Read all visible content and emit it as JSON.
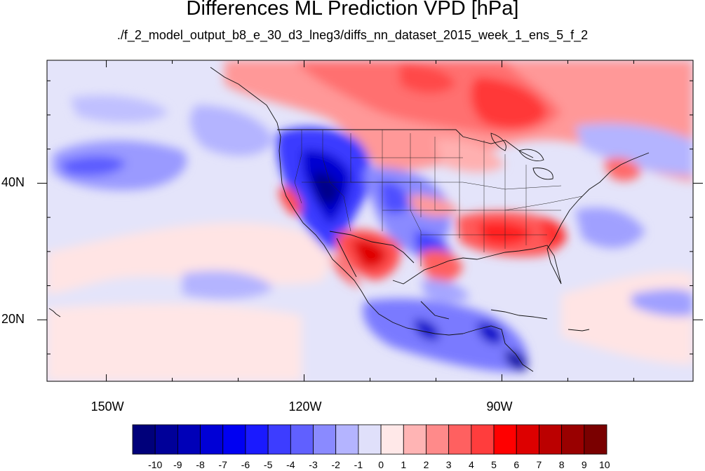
{
  "title": "Differences ML Prediction VPD [hPa]",
  "subtitle": "./f_2_model_output_b8_e_30_d3_lneg3/diffs_nn_dataset_2015_week_1_ens_5_f_2",
  "lon_range": [
    -159,
    -61
  ],
  "lat_range": [
    11,
    58
  ],
  "x_ticks": [
    {
      "lon": -150,
      "label": "150W"
    },
    {
      "lon": -120,
      "label": "120W"
    },
    {
      "lon": -90,
      "label": "90W"
    }
  ],
  "y_ticks": [
    {
      "lat": 40,
      "label": "40N"
    },
    {
      "lat": 20,
      "label": "20N"
    }
  ],
  "colorbar": {
    "labels": [
      "-10",
      "-9",
      "-8",
      "-7",
      "-6",
      "-5",
      "-4",
      "-3",
      "-2",
      "-1",
      "0",
      "1",
      "2",
      "3",
      "4",
      "5",
      "6",
      "7",
      "8",
      "9",
      "10"
    ],
    "colors": [
      "#00007a",
      "#000099",
      "#0000b8",
      "#0000d6",
      "#0000f2",
      "#1a1aff",
      "#3d3dff",
      "#6060ff",
      "#8a8aff",
      "#b4b4ff",
      "#e0e0fa",
      "#ffe8e8",
      "#ffb4b4",
      "#ff8a8a",
      "#ff6060",
      "#ff3d3d",
      "#ff0000",
      "#dd0000",
      "#bb0000",
      "#990000",
      "#7a0000"
    ]
  }
}
